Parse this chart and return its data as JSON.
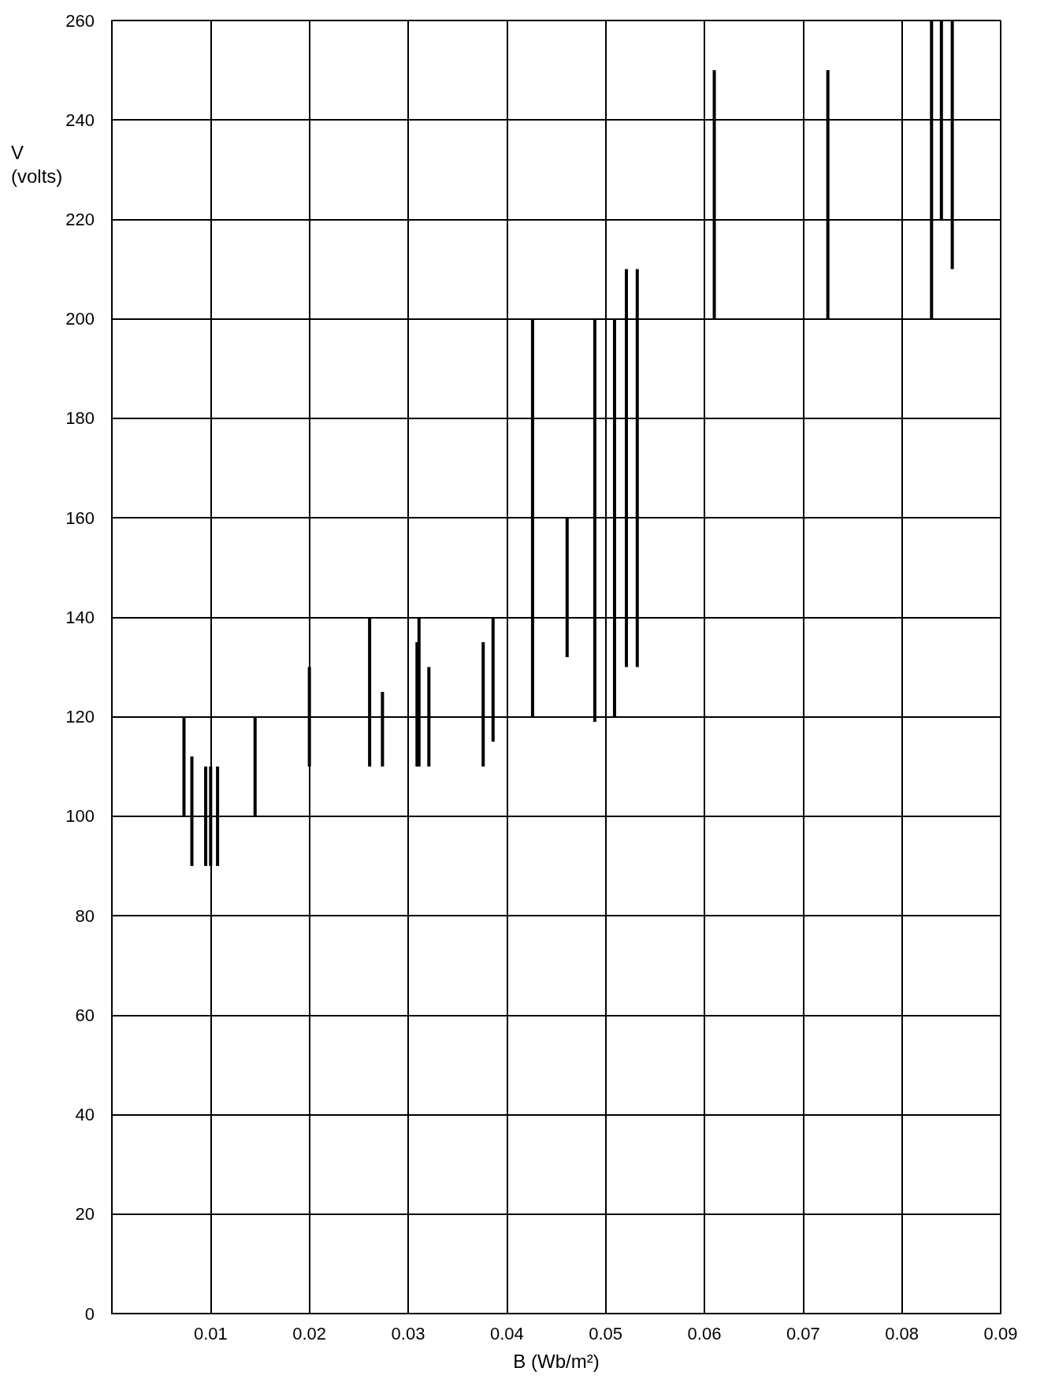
{
  "chart_data": {
    "type": "bar",
    "xlabel": "B (Wb/m²)",
    "ylabel": "V (volts)",
    "xlim": [
      0,
      0.09
    ],
    "xticks": [
      0.01,
      0.02,
      0.03,
      0.04,
      0.05,
      0.06,
      0.07,
      0.08,
      0.09
    ],
    "ylim": [
      0,
      260
    ],
    "yticks": [
      0,
      20,
      40,
      60,
      80,
      100,
      120,
      140,
      160,
      180,
      200,
      220,
      240,
      260
    ],
    "grid": true,
    "series": [
      {
        "color": "#000000",
        "x": [
          0.0073,
          0.0081,
          0.0095,
          0.01,
          0.0107,
          0.0145,
          0.02,
          0.0261,
          0.0274,
          0.0309,
          0.0311,
          0.0321,
          0.0376,
          0.0386,
          0.0426,
          0.0461,
          0.0489,
          0.0509,
          0.0521,
          0.0532,
          0.061,
          0.0725,
          0.083,
          0.084,
          0.0851
        ],
        "base": [
          100,
          90,
          90,
          90,
          90,
          100,
          110,
          110,
          110,
          110,
          110,
          110,
          110,
          115,
          120,
          132,
          119,
          120,
          130,
          130,
          200,
          200,
          200,
          220,
          210
        ],
        "values": [
          20,
          22,
          20,
          20,
          20,
          20,
          20,
          30,
          15,
          25,
          30,
          20,
          25,
          25,
          80,
          28,
          81,
          80,
          80,
          80,
          50,
          50,
          60,
          40,
          50
        ]
      }
    ]
  }
}
